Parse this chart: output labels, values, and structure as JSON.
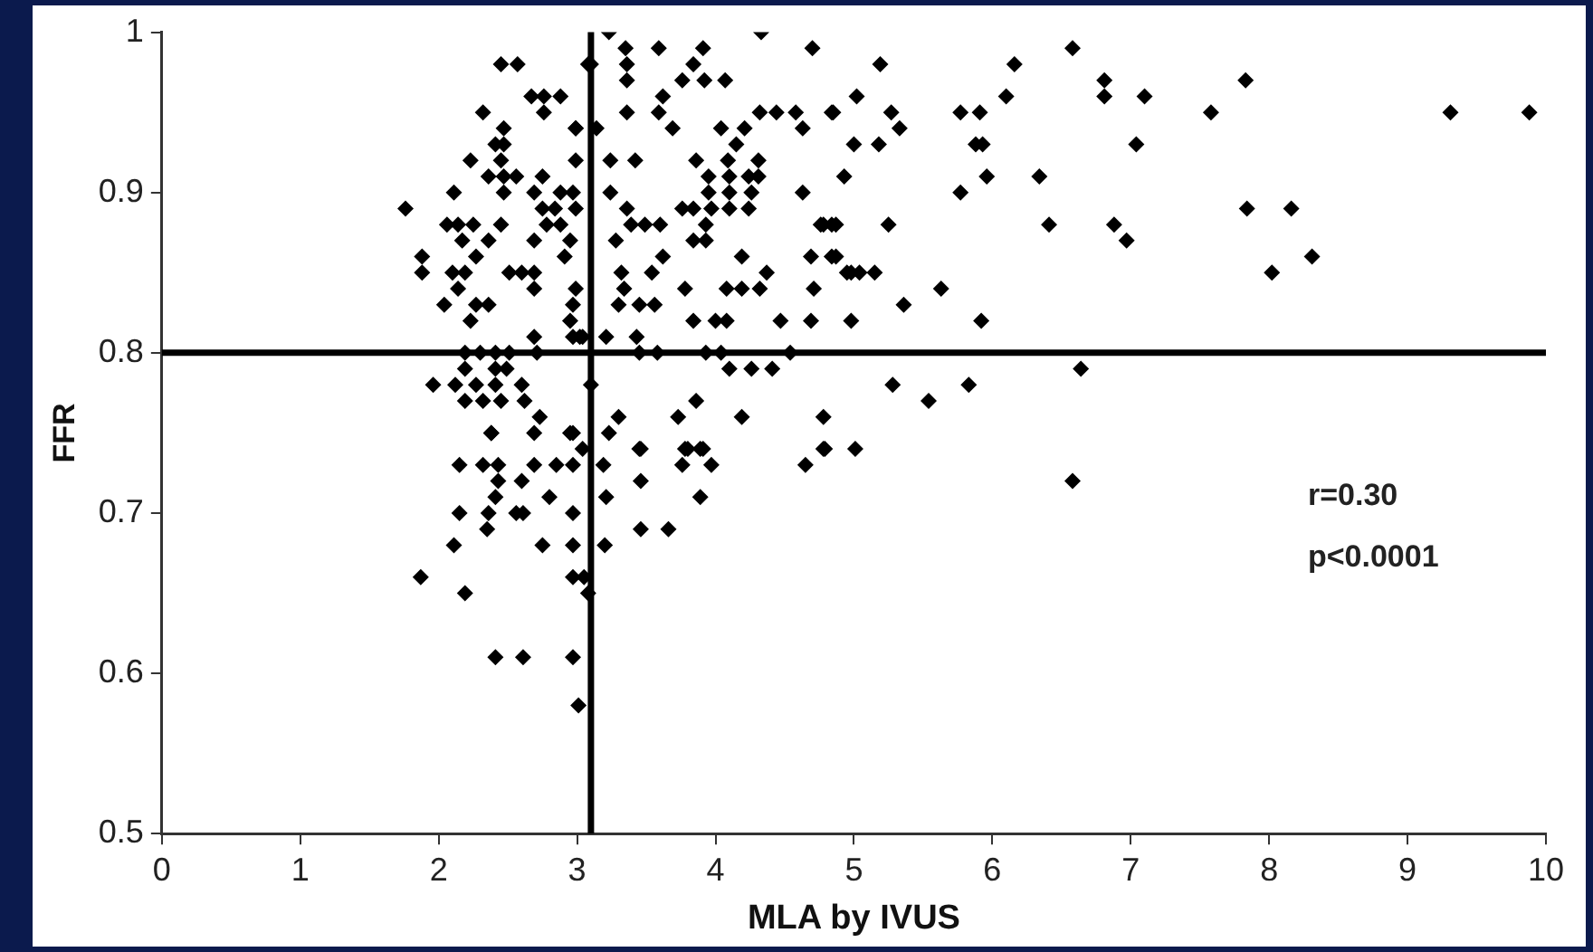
{
  "chart_data": {
    "type": "scatter",
    "xlabel": "MLA by IVUS",
    "ylabel": "FFR",
    "xlim": [
      0,
      10
    ],
    "xticks": [
      0,
      1,
      2,
      3,
      4,
      5,
      6,
      7,
      8,
      9,
      10
    ],
    "ylim": [
      0.5,
      1
    ],
    "yticks": [
      0.5,
      0.6,
      0.7,
      0.8,
      0.9,
      1
    ],
    "grid": false,
    "legend": false,
    "marker": "diamond",
    "ref_lines": [
      {
        "axis": "y",
        "value": 0.8,
        "color": "#000000"
      },
      {
        "axis": "x",
        "value": 3.1,
        "color": "#000000"
      }
    ],
    "annotations": [
      "r=0.30",
      "p<0.0001"
    ],
    "series": [
      {
        "color": "#000000",
        "x": [
          6.58,
          5.19,
          6.16,
          7.83,
          6.81,
          6.81,
          7.1,
          5.02,
          6.1,
          4.85,
          5.27,
          5.33,
          5.77,
          5.91,
          7.58,
          9.31,
          9.88,
          5.0,
          5.18,
          5.88,
          5.93,
          7.04,
          4.93,
          5.96,
          6.34,
          5.77,
          4.78,
          4.87,
          5.25,
          6.41,
          6.88,
          6.97,
          7.84,
          8.16,
          8.02,
          8.31,
          4.87,
          4.95,
          5.04,
          5.15,
          5.36,
          5.63,
          4.98,
          5.92,
          6.64,
          5.28,
          5.54,
          5.83,
          4.78,
          4.78,
          5.01,
          6.58,
          3.23,
          4.33,
          4.7,
          3.35,
          3.59,
          3.91,
          3.1,
          3.36,
          3.84,
          4.07,
          3.92,
          3.76,
          3.36,
          3.62,
          3.36,
          3.59,
          4.32,
          4.44,
          4.58,
          4.84,
          2.99,
          3.14,
          3.69,
          4.04,
          4.21,
          4.63,
          4.15,
          3.24,
          3.42,
          3.86,
          4.09,
          4.31,
          3.95,
          4.1,
          4.24,
          4.31,
          3.24,
          3.95,
          4.1,
          4.26,
          4.63,
          3.36,
          3.76,
          3.84,
          3.97,
          4.1,
          4.24,
          3.39,
          3.49,
          3.6,
          3.93,
          4.76,
          4.84,
          3.28,
          3.84,
          3.93,
          3.62,
          4.19,
          4.69,
          4.84,
          3.32,
          3.54,
          4.37,
          4.98,
          3.34,
          3.78,
          4.08,
          4.19,
          4.32,
          4.71,
          3.45,
          3.56,
          3.3,
          3.84,
          4.0,
          4.08,
          4.47,
          4.69,
          3.43,
          3.21,
          3.02,
          3.45,
          3.58,
          3.93,
          4.04,
          4.54,
          4.1,
          4.26,
          4.41,
          3.1,
          3.86,
          3.73,
          4.19,
          3.3,
          3.23,
          3.45,
          3.8,
          3.91,
          2.38,
          2.69,
          2.95,
          3.04,
          3.46,
          3.78,
          3.89,
          2.15,
          2.32,
          2.43,
          2.69,
          2.85,
          2.97,
          3.19,
          3.46,
          3.76,
          3.97,
          4.65,
          4.79,
          2.43,
          2.6,
          2.41,
          2.8,
          3.21,
          3.89,
          2.15,
          2.36,
          2.56,
          2.61,
          2.97,
          2.35,
          3.46,
          3.66,
          2.11,
          2.75,
          2.97,
          3.2,
          1.87,
          2.19,
          2.97,
          3.05,
          3.08,
          2.41,
          2.61,
          2.97,
          3.01,
          2.45,
          2.57,
          3.08,
          2.67,
          2.76,
          2.88,
          2.76,
          2.32,
          2.47,
          2.41,
          2.47,
          2.99,
          2.99,
          2.23,
          2.45,
          2.47,
          2.56,
          2.36,
          2.75,
          2.47,
          2.11,
          2.69,
          2.88,
          2.97,
          1.76,
          2.75,
          2.84,
          2.99,
          2.06,
          2.14,
          2.25,
          2.45,
          2.78,
          2.88,
          2.17,
          2.36,
          2.69,
          2.95,
          2.27,
          1.88,
          2.91,
          1.88,
          2.1,
          2.19,
          2.51,
          2.6,
          2.69,
          2.14,
          2.69,
          2.99,
          2.97,
          2.27,
          2.36,
          2.04,
          2.23,
          2.69,
          2.95,
          3.04,
          2.97,
          2.19,
          2.3,
          2.41,
          2.51,
          2.71,
          2.41,
          2.49,
          2.19,
          1.96,
          2.12,
          2.27,
          2.41,
          2.6,
          2.19,
          2.32,
          2.45,
          2.62,
          2.38,
          2.73,
          2.97
        ],
        "values": [
          0.99,
          0.98,
          0.98,
          0.97,
          0.97,
          0.96,
          0.96,
          0.96,
          0.96,
          0.95,
          0.95,
          0.94,
          0.95,
          0.95,
          0.95,
          0.95,
          0.95,
          0.93,
          0.93,
          0.93,
          0.93,
          0.93,
          0.91,
          0.91,
          0.91,
          0.9,
          0.88,
          0.88,
          0.88,
          0.88,
          0.88,
          0.87,
          0.89,
          0.89,
          0.85,
          0.86,
          0.86,
          0.85,
          0.85,
          0.85,
          0.83,
          0.84,
          0.82,
          0.82,
          0.79,
          0.78,
          0.77,
          0.78,
          0.76,
          0.74,
          0.74,
          0.72,
          1.0,
          1.0,
          0.99,
          0.99,
          0.99,
          0.99,
          0.98,
          0.98,
          0.98,
          0.97,
          0.97,
          0.97,
          0.97,
          0.96,
          0.95,
          0.95,
          0.95,
          0.95,
          0.95,
          0.95,
          0.94,
          0.94,
          0.94,
          0.94,
          0.94,
          0.94,
          0.93,
          0.92,
          0.92,
          0.92,
          0.92,
          0.92,
          0.91,
          0.91,
          0.91,
          0.91,
          0.9,
          0.9,
          0.9,
          0.9,
          0.9,
          0.89,
          0.89,
          0.89,
          0.89,
          0.89,
          0.89,
          0.88,
          0.88,
          0.88,
          0.88,
          0.88,
          0.88,
          0.87,
          0.87,
          0.87,
          0.86,
          0.86,
          0.86,
          0.86,
          0.85,
          0.85,
          0.85,
          0.85,
          0.84,
          0.84,
          0.84,
          0.84,
          0.84,
          0.84,
          0.83,
          0.83,
          0.83,
          0.82,
          0.82,
          0.82,
          0.82,
          0.82,
          0.81,
          0.81,
          0.81,
          0.8,
          0.8,
          0.8,
          0.8,
          0.8,
          0.79,
          0.79,
          0.79,
          0.78,
          0.77,
          0.76,
          0.76,
          0.76,
          0.75,
          0.74,
          0.74,
          0.74,
          0.75,
          0.75,
          0.75,
          0.74,
          0.74,
          0.74,
          0.74,
          0.73,
          0.73,
          0.73,
          0.73,
          0.73,
          0.73,
          0.73,
          0.72,
          0.73,
          0.73,
          0.73,
          0.74,
          0.72,
          0.72,
          0.71,
          0.71,
          0.71,
          0.71,
          0.7,
          0.7,
          0.7,
          0.7,
          0.7,
          0.69,
          0.69,
          0.69,
          0.68,
          0.68,
          0.68,
          0.68,
          0.66,
          0.65,
          0.66,
          0.66,
          0.65,
          0.61,
          0.61,
          0.61,
          0.58,
          0.98,
          0.98,
          0.98,
          0.96,
          0.96,
          0.96,
          0.95,
          0.95,
          0.94,
          0.93,
          0.93,
          0.94,
          0.92,
          0.92,
          0.92,
          0.91,
          0.91,
          0.91,
          0.91,
          0.9,
          0.9,
          0.9,
          0.9,
          0.9,
          0.89,
          0.89,
          0.89,
          0.89,
          0.88,
          0.88,
          0.88,
          0.88,
          0.88,
          0.88,
          0.87,
          0.87,
          0.87,
          0.87,
          0.86,
          0.86,
          0.86,
          0.85,
          0.85,
          0.85,
          0.85,
          0.85,
          0.85,
          0.84,
          0.84,
          0.84,
          0.83,
          0.83,
          0.83,
          0.83,
          0.82,
          0.81,
          0.82,
          0.81,
          0.81,
          0.8,
          0.8,
          0.8,
          0.8,
          0.8,
          0.79,
          0.79,
          0.79,
          0.78,
          0.78,
          0.78,
          0.78,
          0.78,
          0.77,
          0.77,
          0.77,
          0.77,
          0.75,
          0.76,
          0.75
        ]
      }
    ]
  }
}
